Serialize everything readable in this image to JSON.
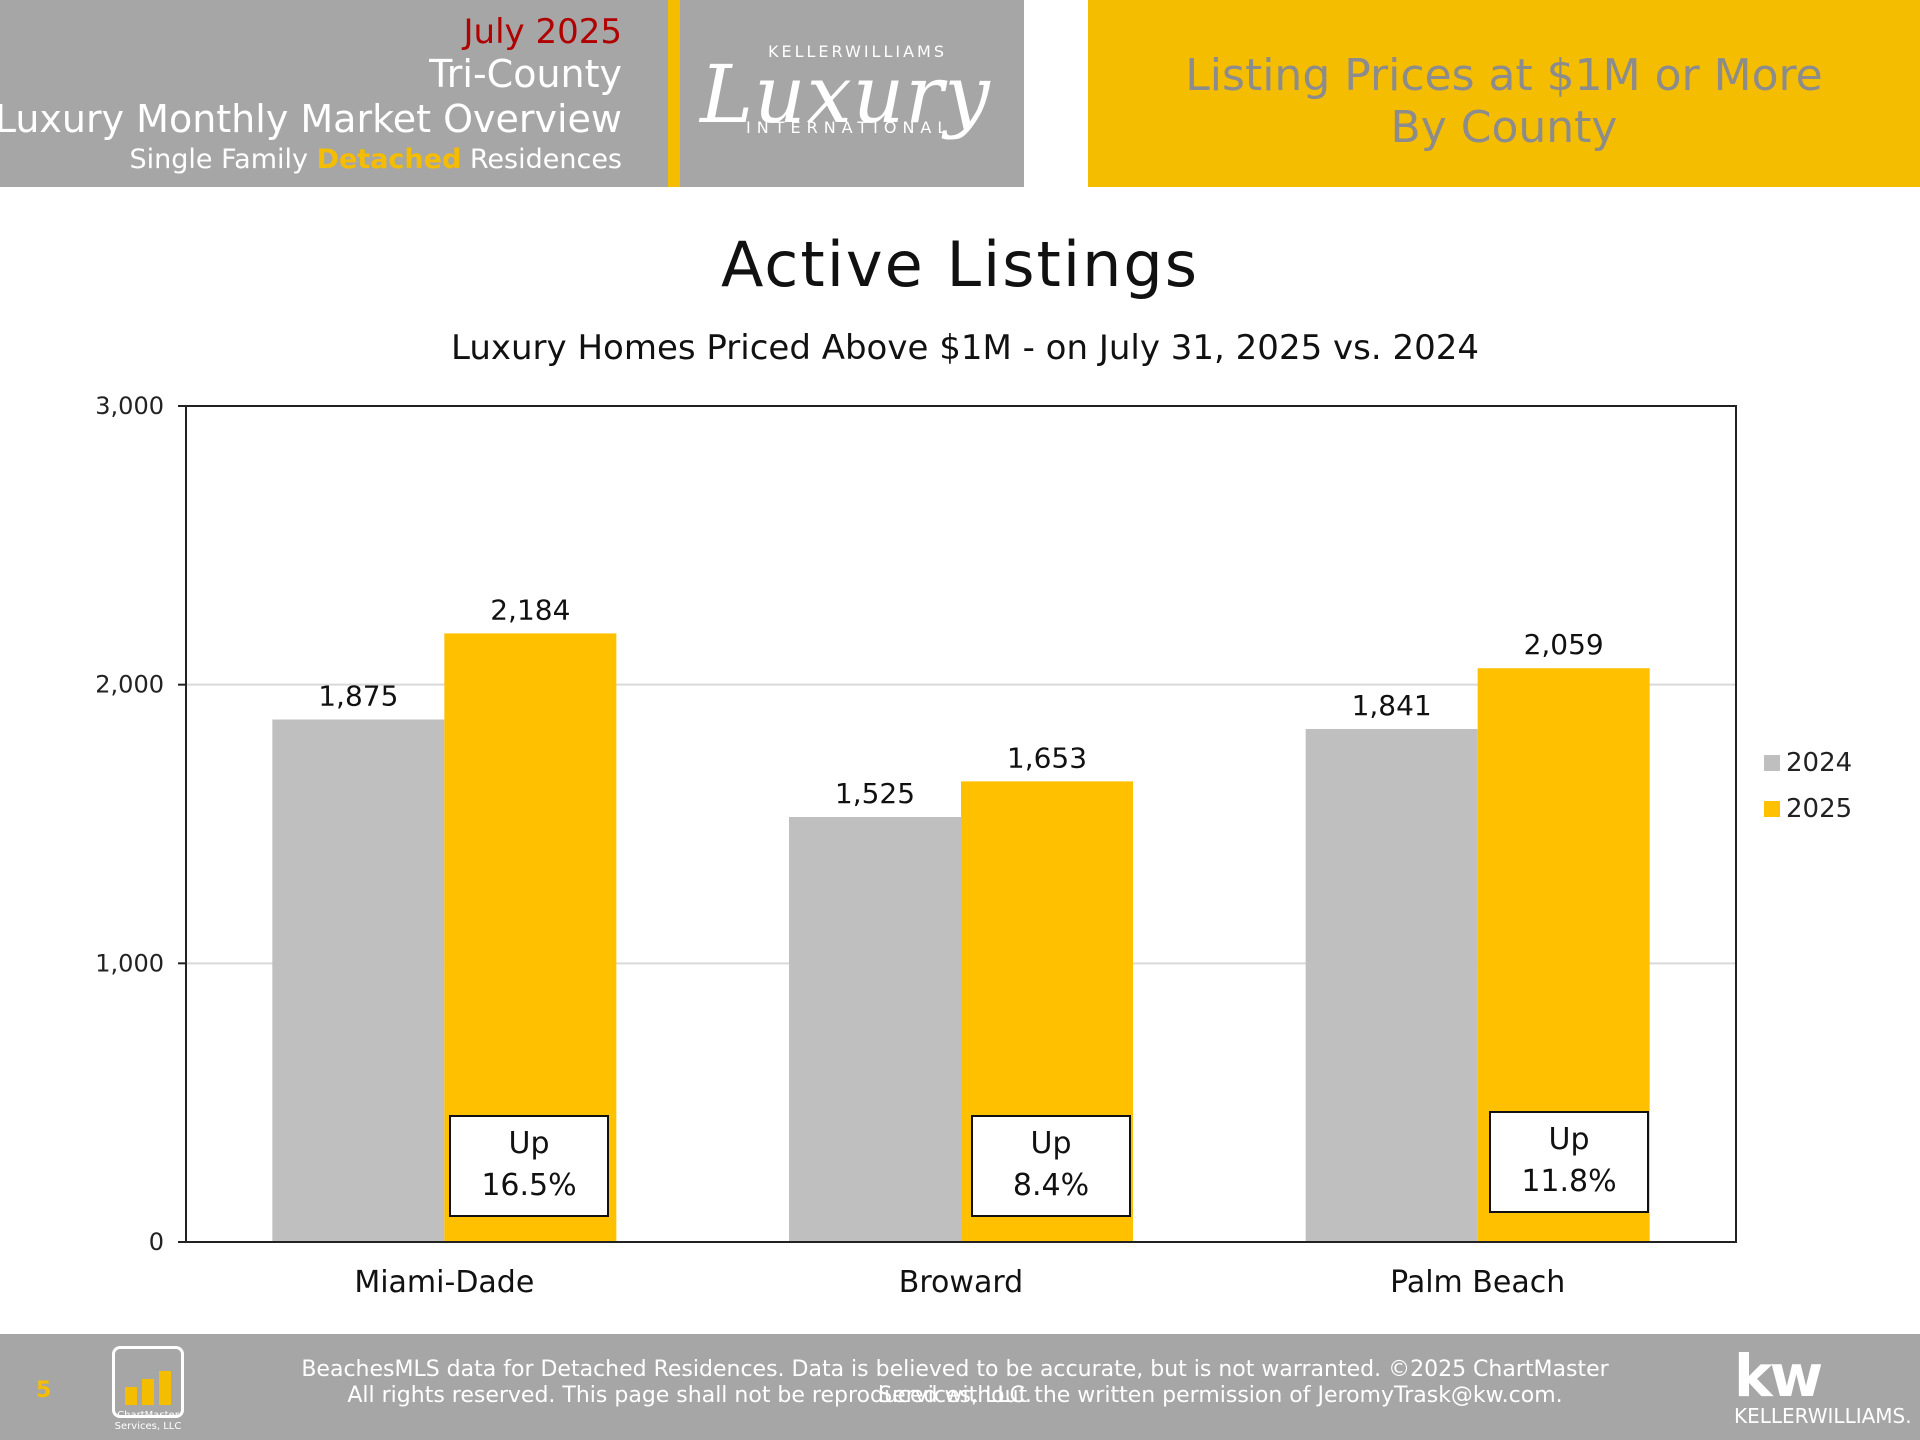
{
  "header": {
    "date": "July 2025",
    "region": "Tri-County",
    "overview": "Luxury Monthly Market Overview",
    "type_prefix": "Single Family ",
    "type_accent": "Detached",
    "type_suffix": " Residences",
    "logo_top": "KELLERWILLIAMS",
    "logo_script": "Luxury",
    "logo_bottom": "INTERNATIONAL",
    "title_line1": "Listing Prices at $1M or More",
    "title_line2": "By County"
  },
  "chart_data": {
    "type": "bar",
    "title": "Active Listings",
    "subtitle": "Luxury Homes Priced Above $1M - on July 31,  2025 vs. 2024",
    "categories": [
      "Miami-Dade",
      "Broward",
      "Palm Beach"
    ],
    "series": [
      {
        "name": "2024",
        "values": [
          1875,
          1525,
          1841
        ],
        "color": "#bfbfbf"
      },
      {
        "name": "2025",
        "values": [
          2184,
          1653,
          2059
        ],
        "color": "#ffc000"
      }
    ],
    "data_labels": {
      "2024": [
        "1,875",
        "1,525",
        "1,841"
      ],
      "2025": [
        "2,184",
        "1,653",
        "2,059"
      ]
    },
    "ylim": [
      0,
      3000
    ],
    "yticks": [
      0,
      1000,
      2000,
      3000
    ],
    "ytick_labels": [
      "0",
      "1,000",
      "2,000",
      "3,000"
    ],
    "gridlines": true,
    "legend_position": "right",
    "changes": [
      {
        "direction": "Up",
        "value": "16.5%"
      },
      {
        "direction": "Up",
        "value": "8.4%"
      },
      {
        "direction": "Up",
        "value": "11.8%"
      }
    ]
  },
  "footer": {
    "page_number": "5",
    "logo_label": "ChartMaster Services, LLC",
    "line1": "BeachesMLS data for Detached Residences.  Data is believed to be accurate, but is not warranted.   ©2025  ChartMaster Services, LLC.",
    "line2": "All rights reserved. This page shall not be reproduced without the written permission of JeromyTrask@kw.com.",
    "kw_mark": "kw",
    "kw_word": "KELLERWILLIAMS."
  },
  "colors": {
    "brand_gold": "#f5bd00",
    "header_gray": "#a6a6a6",
    "date_red": "#b00000"
  }
}
